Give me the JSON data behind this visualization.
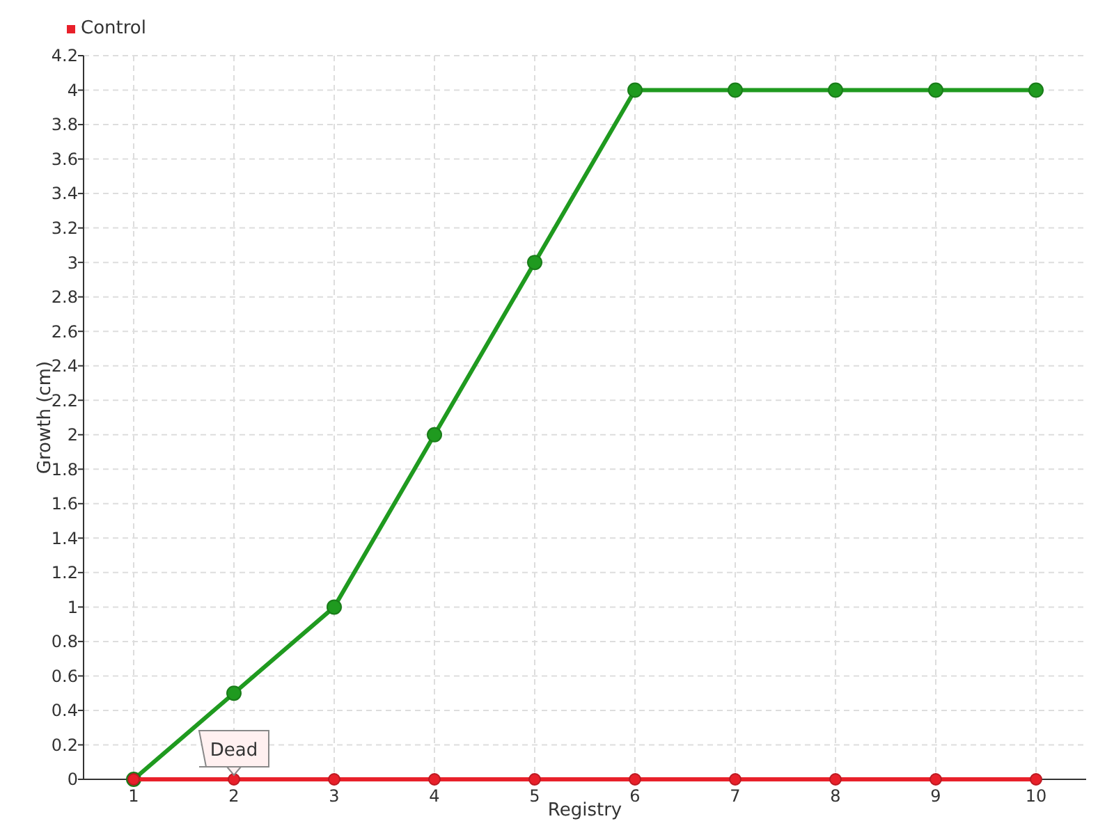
{
  "chart_data": {
    "type": "line",
    "xlabel": "Registry",
    "ylabel": "Growth (cm)",
    "categories": [
      "1",
      "2",
      "3",
      "4",
      "5",
      "6",
      "7",
      "8",
      "9",
      "10"
    ],
    "series": [
      {
        "color": "#1f9a1f",
        "values": [
          0,
          0.5,
          1,
          2,
          3,
          4,
          4,
          4,
          4,
          4
        ]
      },
      {
        "name": "Control",
        "color": "#e8202a",
        "values": [
          0,
          0,
          0,
          0,
          0,
          0,
          0,
          0,
          0,
          0
        ]
      }
    ],
    "ylim": [
      0,
      4.2
    ],
    "yticks": [
      0,
      0.2,
      0.4,
      0.6,
      0.8,
      1,
      1.2,
      1.4,
      1.6,
      1.8,
      2,
      2.2,
      2.4,
      2.6,
      2.8,
      3,
      3.2,
      3.4,
      3.6,
      3.8,
      4,
      4.2
    ],
    "grid": true,
    "legend": "top left",
    "marker": "circle",
    "annotations": [
      {
        "text": "Dead",
        "x": "2",
        "y": 0
      }
    ]
  }
}
